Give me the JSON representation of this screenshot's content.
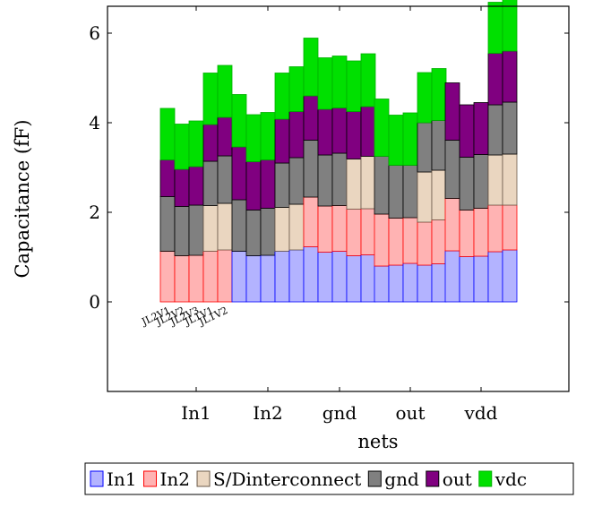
{
  "chart_data": {
    "type": "bar",
    "stacked": true,
    "title": "",
    "xlabel": "nets",
    "ylabel": "Capacitance (fF)",
    "categories": [
      "In1",
      "In2",
      "gnd",
      "out",
      "vdd"
    ],
    "configurations": [
      "JL2V1",
      "JL2V2",
      "JL2V3",
      "JL1V1",
      "JL1V2"
    ],
    "ylim": [
      -2,
      6.6
    ],
    "yticks": [
      0,
      2,
      4,
      6
    ],
    "grid": false,
    "legend_position": "bottom",
    "series": [
      {
        "name": "In1",
        "color": "#b3b3ff",
        "edge": "#0000ff",
        "values": [
          [
            0,
            0,
            0,
            0,
            0
          ],
          [
            1.13,
            1.03,
            1.04,
            1.13,
            1.16
          ],
          [
            1.23,
            1.11,
            1.13,
            1.03,
            1.05
          ],
          [
            0.8,
            0.82,
            0.86,
            0.82,
            0.85
          ],
          [
            1.14,
            1.01,
            1.02,
            1.12,
            1.16
          ]
        ]
      },
      {
        "name": "In2",
        "color": "#ffb3b3",
        "edge": "#ff0000",
        "values": [
          [
            1.13,
            1.03,
            1.04,
            1.13,
            1.16
          ],
          [
            0,
            0,
            0,
            0,
            0
          ],
          [
            1.11,
            1.03,
            1.02,
            1.04,
            1.03
          ],
          [
            1.16,
            1.05,
            1.02,
            0.96,
            0.98
          ],
          [
            1.17,
            1.04,
            1.07,
            1.04,
            1.0
          ]
        ]
      },
      {
        "name": "S/Dinterconnect",
        "color": "#ead6c0",
        "edge": "#6b5a4a",
        "values": [
          [
            0,
            0,
            0,
            1.02,
            1.04
          ],
          [
            0,
            0,
            0,
            0.98,
            1.02
          ],
          [
            0,
            0,
            0,
            1.12,
            1.17
          ],
          [
            0,
            0,
            0,
            1.12,
            1.11
          ],
          [
            0,
            0,
            0,
            1.12,
            1.14
          ]
        ]
      },
      {
        "name": "gnd",
        "color": "#808080",
        "edge": "#000000",
        "values": [
          [
            1.22,
            1.1,
            1.12,
            0.99,
            1.06
          ],
          [
            1.15,
            1.02,
            1.05,
            0.99,
            1.04
          ],
          [
            1.27,
            1.14,
            1.17,
            0,
            0
          ],
          [
            1.29,
            1.18,
            1.17,
            1.1,
            1.11
          ],
          [
            1.3,
            1.18,
            1.2,
            1.12,
            1.16
          ]
        ]
      },
      {
        "name": "out",
        "color": "#800080",
        "edge": "#000000",
        "values": [
          [
            0.82,
            0.83,
            0.86,
            0.82,
            0.86
          ],
          [
            1.18,
            1.08,
            1.08,
            0.98,
            1.03
          ],
          [
            0.99,
            1.02,
            1.01,
            1.06,
            1.11
          ],
          [
            0,
            0,
            0,
            0,
            0
          ],
          [
            1.28,
            1.17,
            1.16,
            1.15,
            1.14
          ]
        ]
      },
      {
        "name": "vdc",
        "color": "#00e000",
        "edge": "#00b000",
        "values": [
          [
            1.15,
            1.01,
            1.02,
            1.15,
            1.16
          ],
          [
            1.17,
            1.05,
            1.06,
            1.03,
            1.0
          ],
          [
            1.29,
            1.15,
            1.16,
            1.13,
            1.18
          ],
          [
            1.28,
            1.12,
            1.17,
            1.12,
            1.16
          ],
          [
            0,
            0,
            0,
            1.14,
            1.15
          ]
        ]
      }
    ]
  }
}
